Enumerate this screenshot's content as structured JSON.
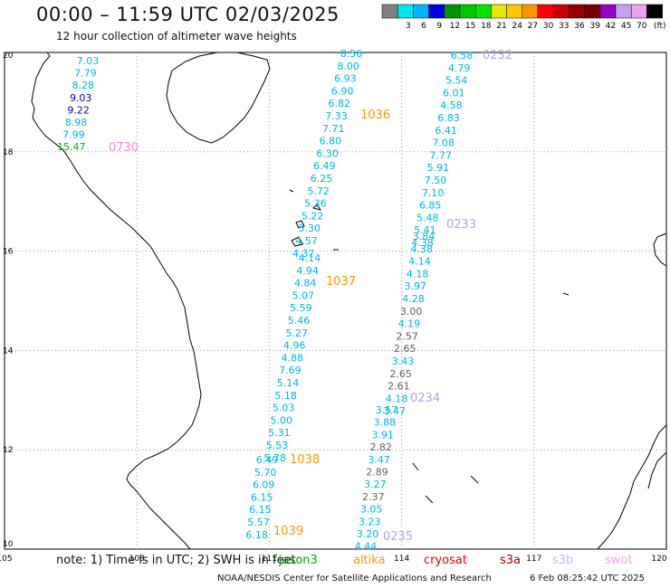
{
  "title": "00:00 – 11:59 UTC 02/03/2025",
  "subtitle": "12 hour collection of altimeter wave heights",
  "legend": {
    "unit": "(ft)",
    "bins": [
      {
        "label": "",
        "color": "#808080"
      },
      {
        "label": "3",
        "color": "#00e6e6"
      },
      {
        "label": "6",
        "color": "#00b4ff"
      },
      {
        "label": "9",
        "color": "#0000e6"
      },
      {
        "label": "12",
        "color": "#009600"
      },
      {
        "label": "15",
        "color": "#00c800"
      },
      {
        "label": "18",
        "color": "#00e600"
      },
      {
        "label": "21",
        "color": "#e6e600"
      },
      {
        "label": "24",
        "color": "#ffc800"
      },
      {
        "label": "27",
        "color": "#ff9600"
      },
      {
        "label": "30",
        "color": "#ff0000"
      },
      {
        "label": "33",
        "color": "#c80000"
      },
      {
        "label": "36",
        "color": "#960000"
      },
      {
        "label": "39",
        "color": "#780000"
      },
      {
        "label": "42",
        "color": "#9600c8"
      },
      {
        "label": "45",
        "color": "#c8a0f0"
      },
      {
        "label": "70",
        "color": "#f0a0f0"
      },
      {
        "label": "",
        "color": "#000000"
      }
    ]
  },
  "axes": {
    "lon_labels": [
      "105",
      "108",
      "111",
      "114",
      "117",
      "120"
    ],
    "lat_labels": [
      "20",
      "18",
      "16",
      "14",
      "12",
      "10"
    ]
  },
  "tracks": [
    {
      "time": "0730",
      "time_color": "#f08cd2",
      "labels": [
        {
          "v": "7.03",
          "c": "#00b4e6"
        },
        {
          "v": "7.79",
          "c": "#00b4e6"
        },
        {
          "v": "8.28",
          "c": "#00b4e6"
        },
        {
          "v": "9.03",
          "c": "#0000c8"
        },
        {
          "v": "9.22",
          "c": "#0000c8"
        },
        {
          "v": "8.98",
          "c": "#00b4e6"
        },
        {
          "v": "7.99",
          "c": "#00b4e6"
        },
        {
          "v": "15.47",
          "c": "#00b400"
        }
      ]
    },
    {
      "time": "1036",
      "time_color": "#ff9600",
      "labels": [
        {
          "v": "8.56",
          "c": "#00b4e6"
        },
        {
          "v": "8.00",
          "c": "#00b4e6"
        },
        {
          "v": "6.93",
          "c": "#00b4e6"
        },
        {
          "v": "6.90",
          "c": "#00b4e6"
        },
        {
          "v": "6.82",
          "c": "#00b4e6"
        },
        {
          "v": "7.33",
          "c": "#00b4e6"
        },
        {
          "v": "7.71",
          "c": "#00b4e6"
        },
        {
          "v": "6.80",
          "c": "#00b4e6"
        },
        {
          "v": "6.30",
          "c": "#00b4e6"
        },
        {
          "v": "6.49",
          "c": "#00b4e6"
        },
        {
          "v": "6.25",
          "c": "#00b4e6"
        },
        {
          "v": "5.72",
          "c": "#00b4e6"
        },
        {
          "v": "5.36",
          "c": "#00b4e6"
        },
        {
          "v": "5.22",
          "c": "#00b4e6"
        },
        {
          "v": "5.30",
          "c": "#00b4e6"
        },
        {
          "v": "4.57",
          "c": "#00b4e6"
        },
        {
          "v": "4.37",
          "c": "#00b4e6"
        }
      ]
    },
    {
      "time": "1037",
      "time_color": "#ff9600",
      "labels": [
        {
          "v": "4.14",
          "c": "#00b4e6"
        },
        {
          "v": "4.94",
          "c": "#00b4e6"
        },
        {
          "v": "4.84",
          "c": "#00b4e6"
        },
        {
          "v": "5.07",
          "c": "#00b4e6"
        },
        {
          "v": "5.59",
          "c": "#00b4e6"
        },
        {
          "v": "5.46",
          "c": "#00b4e6"
        },
        {
          "v": "5.27",
          "c": "#00b4e6"
        },
        {
          "v": "4.96",
          "c": "#00b4e6"
        },
        {
          "v": "4.88",
          "c": "#00b4e6"
        },
        {
          "v": "7.69",
          "c": "#00b4e6"
        },
        {
          "v": "5.14",
          "c": "#00b4e6"
        },
        {
          "v": "5.18",
          "c": "#00b4e6"
        },
        {
          "v": "5.03",
          "c": "#00b4e6"
        },
        {
          "v": "5.00",
          "c": "#00b4e6"
        },
        {
          "v": "5.31",
          "c": "#00b4e6"
        },
        {
          "v": "5.53",
          "c": "#00b4e6"
        },
        {
          "v": "5.78",
          "c": "#00b4e6"
        }
      ]
    },
    {
      "time": "1038",
      "time_color": "#ff9600",
      "labels": [
        {
          "v": "6.49",
          "c": "#00b4e6"
        },
        {
          "v": "5.70",
          "c": "#00b4e6"
        },
        {
          "v": "6.09",
          "c": "#00b4e6"
        },
        {
          "v": "6.15",
          "c": "#00b4e6"
        },
        {
          "v": "6.15",
          "c": "#00b4e6"
        },
        {
          "v": "5.57",
          "c": "#00b4e6"
        },
        {
          "v": "6.18",
          "c": "#00b4e6"
        }
      ]
    },
    {
      "time": "1039",
      "time_color": "#ff9600",
      "labels": []
    },
    {
      "time": "0232",
      "time_color": "#b4a0e6",
      "labels": [
        {
          "v": "6.58",
          "c": "#00b4e6"
        },
        {
          "v": "4.79",
          "c": "#00b4e6"
        },
        {
          "v": "5.54",
          "c": "#00b4e6"
        },
        {
          "v": "6.01",
          "c": "#00b4e6"
        },
        {
          "v": "4.58",
          "c": "#00b4e6"
        },
        {
          "v": "6.83",
          "c": "#00b4e6"
        },
        {
          "v": "6.41",
          "c": "#00b4e6"
        },
        {
          "v": "7.08",
          "c": "#00b4e6"
        },
        {
          "v": "7.77",
          "c": "#00b4e6"
        },
        {
          "v": "5.91",
          "c": "#00b4e6"
        },
        {
          "v": "7.50",
          "c": "#00b4e6"
        },
        {
          "v": "7.10",
          "c": "#00b4e6"
        },
        {
          "v": "6.85",
          "c": "#00b4e6"
        },
        {
          "v": "5.48",
          "c": "#00b4e6"
        },
        {
          "v": "5.41",
          "c": "#00b4e6"
        },
        {
          "v": "4.38",
          "c": "#00b4e6"
        }
      ]
    },
    {
      "time": "0233",
      "time_color": "#b4a0e6",
      "labels": [
        {
          "v": "3.84",
          "c": "#00b4e6"
        },
        {
          "v": "4.38",
          "c": "#00b4e6"
        },
        {
          "v": "4.14",
          "c": "#00b4e6"
        },
        {
          "v": "4.18",
          "c": "#00b4e6"
        },
        {
          "v": "3.97",
          "c": "#00b4e6"
        },
        {
          "v": "4.28",
          "c": "#00b4e6"
        },
        {
          "v": "3.00",
          "c": "#606060"
        },
        {
          "v": "4.19",
          "c": "#00b4e6"
        },
        {
          "v": "2.57",
          "c": "#606060"
        },
        {
          "v": "2.65",
          "c": "#606060"
        },
        {
          "v": "3.43",
          "c": "#00b4e6"
        },
        {
          "v": "2.65",
          "c": "#606060"
        },
        {
          "v": "2.61",
          "c": "#606060"
        },
        {
          "v": "4.18",
          "c": "#00b4e6"
        },
        {
          "v": "3.47",
          "c": "#00b4e6"
        }
      ]
    },
    {
      "time": "0234",
      "time_color": "#b4a0e6",
      "labels": [
        {
          "v": "3.57",
          "c": "#00b4e6"
        },
        {
          "v": "3.88",
          "c": "#00b4e6"
        },
        {
          "v": "3.91",
          "c": "#00b4e6"
        },
        {
          "v": "2.82",
          "c": "#606060"
        },
        {
          "v": "3.47",
          "c": "#00b4e6"
        },
        {
          "v": "2.89",
          "c": "#606060"
        },
        {
          "v": "3.27",
          "c": "#00b4e6"
        },
        {
          "v": "2.37",
          "c": "#606060"
        },
        {
          "v": "3.05",
          "c": "#00b4e6"
        },
        {
          "v": "3.23",
          "c": "#00b4e6"
        },
        {
          "v": "3.20",
          "c": "#00b4e6"
        },
        {
          "v": "4.44",
          "c": "#00b4e6"
        }
      ]
    },
    {
      "time": "0235",
      "time_color": "#b4a0e6",
      "labels": []
    }
  ],
  "footer": {
    "note": "note:  1) Time is in UTC; 2) SWH is in feet",
    "satellites": [
      {
        "name": "jason3",
        "color": "#00a000"
      },
      {
        "name": "altika",
        "color": "#ff9600"
      },
      {
        "name": "cryosat",
        "color": "#e60000"
      },
      {
        "name": "s3a",
        "color": "#960000"
      },
      {
        "name": "s3b",
        "color": "#c8b4f0"
      },
      {
        "name": "swot",
        "color": "#f0a0f0"
      }
    ],
    "credit": "NOAA/NESDIS Center for Satellite Applications and Research",
    "generated": "6 Feb 08:25:42 UTC 2025"
  }
}
